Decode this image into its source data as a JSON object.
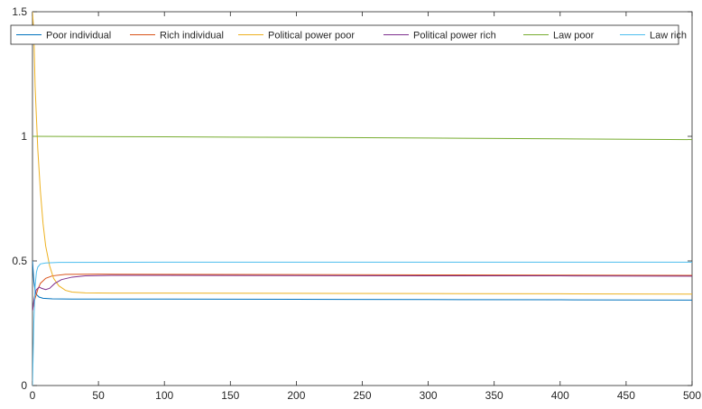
{
  "chart_data": {
    "type": "line",
    "title": "",
    "xlabel": "",
    "ylabel": "",
    "xlim": [
      0,
      500
    ],
    "ylim": [
      0,
      1.5
    ],
    "x_ticks": [
      0,
      50,
      100,
      150,
      200,
      250,
      300,
      350,
      400,
      450,
      500
    ],
    "y_ticks": [
      0,
      0.5,
      1,
      1.5
    ],
    "x_tick_labels": [
      "0",
      "50",
      "100",
      "150",
      "200",
      "250",
      "300",
      "350",
      "400",
      "450",
      "500"
    ],
    "y_tick_labels": [
      "0",
      "0.5",
      "1",
      "1.5"
    ],
    "grid": false,
    "legend_position": "top",
    "series": [
      {
        "name": "Poor individual",
        "color": "#0072BD",
        "points": [
          [
            0,
            0.5
          ],
          [
            1,
            0.42
          ],
          [
            2,
            0.38
          ],
          [
            3,
            0.365
          ],
          [
            5,
            0.355
          ],
          [
            8,
            0.35
          ],
          [
            15,
            0.348
          ],
          [
            30,
            0.347
          ],
          [
            100,
            0.347
          ],
          [
            200,
            0.346
          ],
          [
            300,
            0.345
          ],
          [
            400,
            0.344
          ],
          [
            500,
            0.343
          ]
        ]
      },
      {
        "name": "Rich individual",
        "color": "#D95319",
        "points": [
          [
            0,
            0.3
          ],
          [
            1,
            0.33
          ],
          [
            2,
            0.35
          ],
          [
            4,
            0.385
          ],
          [
            6,
            0.41
          ],
          [
            10,
            0.43
          ],
          [
            15,
            0.44
          ],
          [
            25,
            0.446
          ],
          [
            50,
            0.447
          ],
          [
            100,
            0.446
          ],
          [
            200,
            0.445
          ],
          [
            300,
            0.444
          ],
          [
            400,
            0.443
          ],
          [
            500,
            0.442
          ]
        ]
      },
      {
        "name": "Political power poor",
        "color": "#EDB120",
        "points": [
          [
            0,
            1.5
          ],
          [
            1,
            1.42
          ],
          [
            2,
            1.2
          ],
          [
            4,
            0.95
          ],
          [
            6,
            0.78
          ],
          [
            8,
            0.65
          ],
          [
            10,
            0.56
          ],
          [
            13,
            0.48
          ],
          [
            16,
            0.43
          ],
          [
            20,
            0.4
          ],
          [
            25,
            0.382
          ],
          [
            30,
            0.375
          ],
          [
            40,
            0.372
          ],
          [
            60,
            0.371
          ],
          [
            100,
            0.371
          ],
          [
            200,
            0.37
          ],
          [
            300,
            0.369
          ],
          [
            400,
            0.368
          ],
          [
            500,
            0.367
          ]
        ]
      },
      {
        "name": "Political power rich",
        "color": "#7E2F8E",
        "points": [
          [
            0,
            0.3
          ],
          [
            1,
            0.34
          ],
          [
            2,
            0.37
          ],
          [
            3,
            0.385
          ],
          [
            5,
            0.395
          ],
          [
            7,
            0.39
          ],
          [
            10,
            0.385
          ],
          [
            13,
            0.39
          ],
          [
            17,
            0.41
          ],
          [
            22,
            0.425
          ],
          [
            30,
            0.435
          ],
          [
            40,
            0.44
          ],
          [
            60,
            0.442
          ],
          [
            100,
            0.442
          ],
          [
            200,
            0.441
          ],
          [
            300,
            0.44
          ],
          [
            400,
            0.44
          ],
          [
            500,
            0.439
          ]
        ]
      },
      {
        "name": "Law poor",
        "color": "#77AC30",
        "points": [
          [
            0,
            1.0
          ],
          [
            100,
            0.998
          ],
          [
            200,
            0.996
          ],
          [
            300,
            0.993
          ],
          [
            400,
            0.99
          ],
          [
            500,
            0.987
          ]
        ]
      },
      {
        "name": "Law rich",
        "color": "#4DBEEE",
        "points": [
          [
            0,
            0.0
          ],
          [
            1,
            0.25
          ],
          [
            2,
            0.4
          ],
          [
            3,
            0.455
          ],
          [
            4,
            0.475
          ],
          [
            6,
            0.488
          ],
          [
            10,
            0.492
          ],
          [
            20,
            0.494
          ],
          [
            100,
            0.495
          ],
          [
            300,
            0.495
          ],
          [
            500,
            0.495
          ]
        ]
      }
    ]
  }
}
